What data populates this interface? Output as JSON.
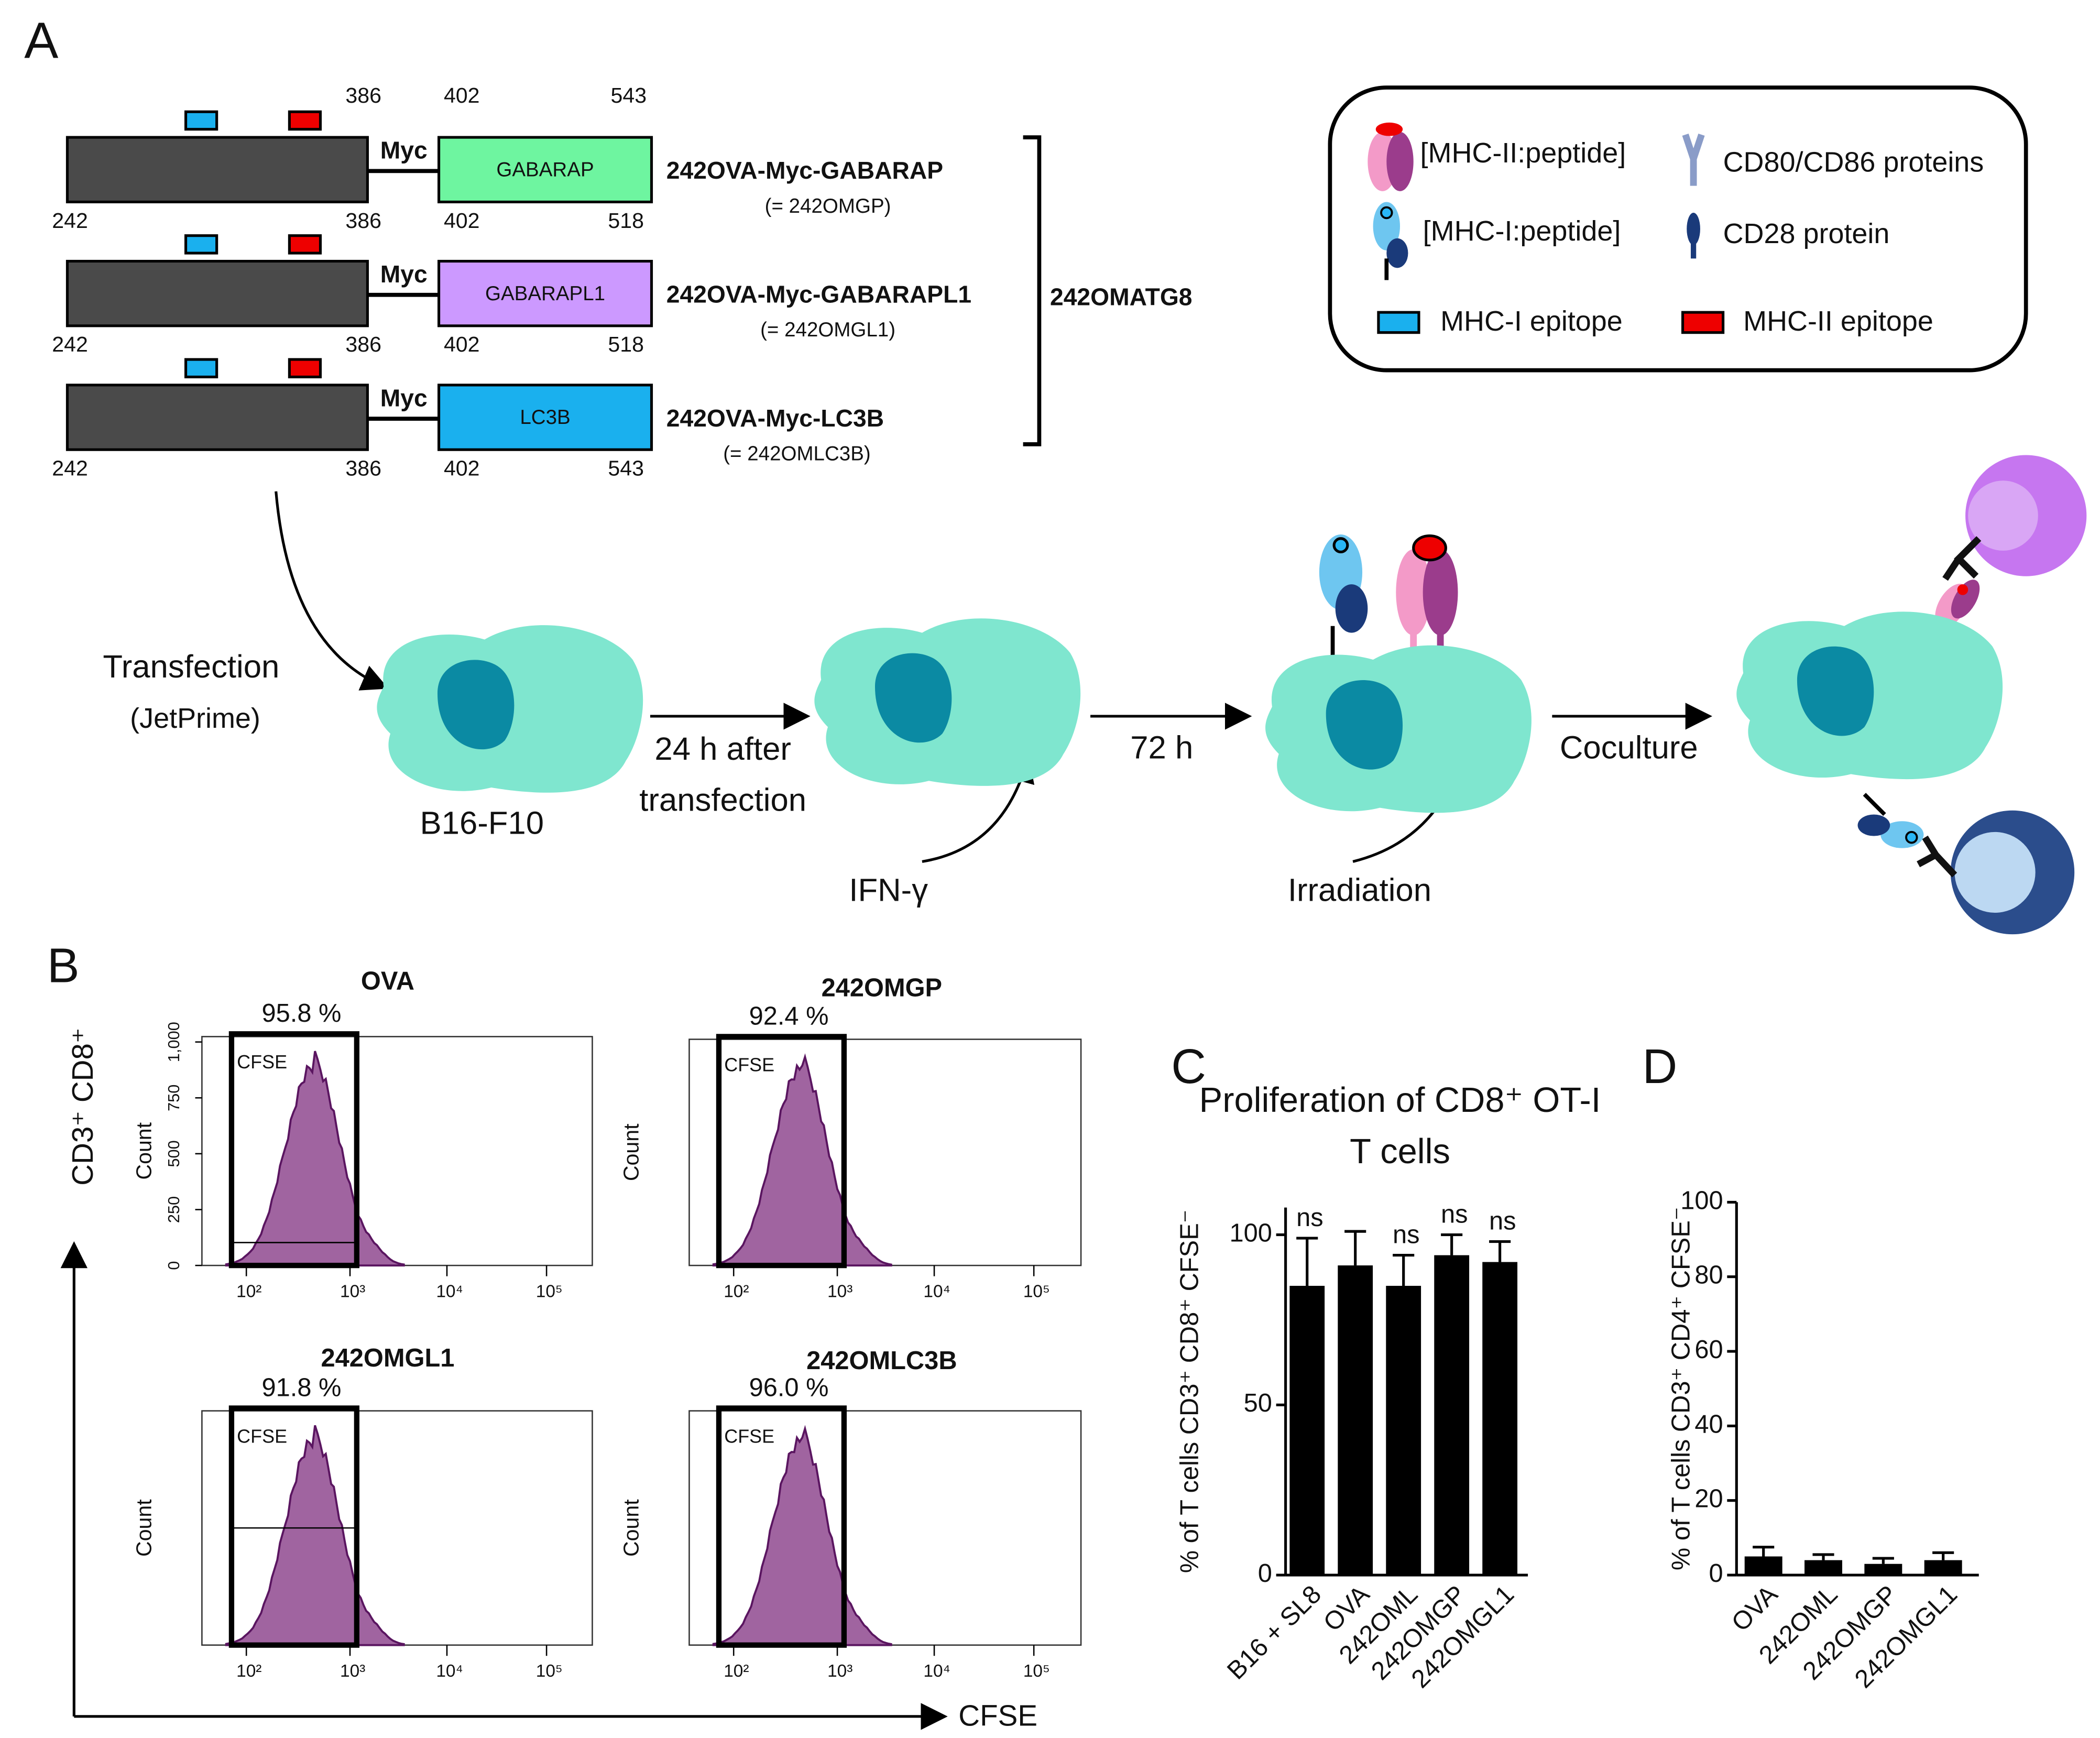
{
  "panel_a": {
    "label": "A",
    "constructs": [
      {
        "top_numbers": [
          "386",
          "402",
          "543"
        ],
        "bottom_numbers": [
          "242",
          "386",
          "402",
          "518"
        ],
        "linker": "Myc",
        "domain": "GABARAP",
        "name": "242OVA-Myc-GABARAP",
        "alias": "(= 242OMGP)"
      },
      {
        "bottom_numbers": [
          "242",
          "386",
          "402",
          "518"
        ],
        "linker": "Myc",
        "domain": "GABARAPL1",
        "name": "242OVA-Myc-GABARAPL1",
        "alias": "(= 242OMGL1)"
      },
      {
        "bottom_numbers": [
          "242",
          "386",
          "402",
          "543"
        ],
        "linker": "Myc",
        "domain": "LC3B",
        "name": "242OVA-Myc-LC3B",
        "alias": "(= 242OMLC3B)"
      }
    ],
    "group_label": "242OMATG8",
    "legend": [
      "[MHC-II:peptide]",
      "CD80/CD86 proteins",
      "[MHC-I:peptide]",
      "CD28 protein",
      "MHC-I epitope",
      "MHC-II epitope"
    ],
    "workflow": {
      "transfection": "Transfection",
      "reagent": "(JetPrime)",
      "cell_line": "B16-F10",
      "step1": [
        "24 h after",
        "transfection"
      ],
      "ifn": "IFN-γ",
      "step2": "72 h",
      "irradiation": "Irradiation",
      "step3": "Coculture"
    }
  },
  "panel_b": {
    "label": "B",
    "y_label": "CD3⁺ CD8⁺",
    "x_label": "CFSE",
    "histograms": [
      {
        "title": "OVA",
        "percent": "95.8 %",
        "gate": "CFSE",
        "y_label": "Count",
        "yticks": [
          "0",
          "250",
          "500",
          "750",
          "1,000"
        ],
        "xticks": [
          "10²",
          "10³",
          "10⁴",
          "10⁵"
        ]
      },
      {
        "title": "242OMGP",
        "percent": "92.4 %",
        "gate": "CFSE",
        "y_label": "Count",
        "xticks": [
          "10²",
          "10³",
          "10⁴",
          "10⁵"
        ]
      },
      {
        "title": "242OMGL1",
        "percent": "91.8 %",
        "gate": "CFSE",
        "y_label": "Count",
        "xticks": [
          "10²",
          "10³",
          "10⁴",
          "10⁵"
        ]
      },
      {
        "title": "242OMLC3B",
        "percent": "96.0 %",
        "gate": "CFSE",
        "y_label": "Count",
        "xticks": [
          "10²",
          "10³",
          "10⁴",
          "10⁵"
        ]
      }
    ]
  },
  "chart_data": [
    {
      "label": "C",
      "type": "bar",
      "title": "Proliferation of CD8⁺ OT-I T cells",
      "y_label": "% of T cells CD3⁺ CD8⁺ CFSE⁻",
      "categories": [
        "B16 + SL8",
        "OVA",
        "242OML",
        "242OMGP",
        "242OMGL1"
      ],
      "values": [
        85,
        91,
        85,
        94,
        92
      ],
      "errors": [
        14,
        10,
        9,
        6,
        6
      ],
      "annotations": [
        "ns",
        null,
        "ns",
        "ns",
        "ns"
      ],
      "ylim": [
        0,
        108
      ],
      "yticks": [
        0,
        50,
        100
      ],
      "color": "#000000"
    },
    {
      "label": "D",
      "type": "bar",
      "y_label": "% of T cells CD3⁺ CD4⁺ CFSE⁻",
      "categories": [
        "OVA",
        "242OML",
        "242OMGP",
        "242OMGL1"
      ],
      "values": [
        5,
        4,
        3,
        4
      ],
      "errors": [
        2.5,
        1.5,
        1.5,
        2
      ],
      "ylim": [
        0,
        100
      ],
      "yticks": [
        0,
        20,
        40,
        60,
        80,
        100
      ],
      "color": "#000000"
    }
  ]
}
